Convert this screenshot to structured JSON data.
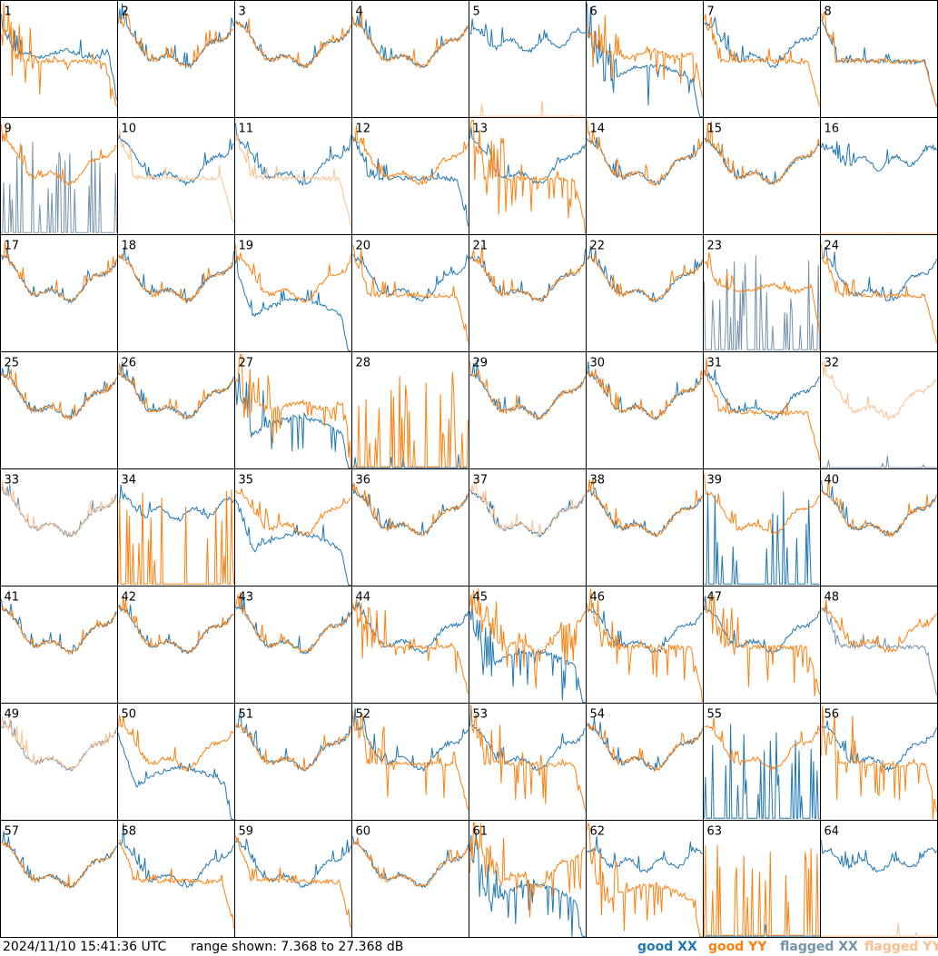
{
  "footer": {
    "timestamp": "2024/11/10 15:41:36 UTC",
    "range": "range shown: 7.368 to 27.368 dB"
  },
  "chart_data": {
    "type": "line",
    "title": "",
    "grid": {
      "rows": 8,
      "cols": 8
    },
    "ylim": [
      7.368,
      27.368
    ],
    "y_units": "dB",
    "legend": [
      {
        "name": "good XX",
        "color": "#1f77b4"
      },
      {
        "name": "good YY",
        "color": "#ff7f0e"
      },
      {
        "name": "flagged XX",
        "color": "#7393ab"
      },
      {
        "name": "flagged YY",
        "color": "#fcbf8e"
      }
    ],
    "panels": [
      {
        "label": "1",
        "xx": "good",
        "yy": "good",
        "xx_shape": "plateau",
        "yy_shape": "droop",
        "noisy": "yy"
      },
      {
        "label": "2",
        "xx": "good",
        "yy": "good",
        "xx_shape": "bowl",
        "yy_shape": "bowl"
      },
      {
        "label": "3",
        "xx": "good",
        "yy": "good",
        "xx_shape": "bowl",
        "yy_shape": "bowl"
      },
      {
        "label": "4",
        "xx": "good",
        "yy": "good",
        "xx_shape": "bowl",
        "yy_shape": "bowl"
      },
      {
        "label": "5",
        "xx": "good",
        "yy": "flagged",
        "xx_shape": "high",
        "yy_shape": "floor"
      },
      {
        "label": "6",
        "xx": "good",
        "yy": "good",
        "xx_shape": "dip",
        "yy_shape": "plateau",
        "noisy": "both"
      },
      {
        "label": "7",
        "xx": "good",
        "yy": "good",
        "xx_shape": "bowl",
        "yy_shape": "droop"
      },
      {
        "label": "8",
        "xx": "good",
        "yy": "good",
        "xx_shape": "droop",
        "yy_shape": "droop"
      },
      {
        "label": "9",
        "xx": "flagged",
        "yy": "good",
        "xx_shape": "spikes",
        "yy_shape": "bowl"
      },
      {
        "label": "10",
        "xx": "good",
        "yy": "flagged",
        "xx_shape": "bowl",
        "yy_shape": "droop"
      },
      {
        "label": "11",
        "xx": "good",
        "yy": "flagged",
        "xx_shape": "bowl",
        "yy_shape": "droop"
      },
      {
        "label": "12",
        "xx": "good",
        "yy": "good",
        "xx_shape": "droop",
        "yy_shape": "bowl"
      },
      {
        "label": "13",
        "xx": "good",
        "yy": "good",
        "xx_shape": "bowl",
        "yy_shape": "droop",
        "noisy": "yy"
      },
      {
        "label": "14",
        "xx": "good",
        "yy": "good",
        "xx_shape": "bowl",
        "yy_shape": "bowl"
      },
      {
        "label": "15",
        "xx": "good",
        "yy": "good",
        "xx_shape": "bowl",
        "yy_shape": "bowl"
      },
      {
        "label": "16",
        "xx": "good",
        "yy": "flagged",
        "xx_shape": "high",
        "yy_shape": "floor"
      },
      {
        "label": "17",
        "xx": "good",
        "yy": "good",
        "xx_shape": "bowl",
        "yy_shape": "bowl"
      },
      {
        "label": "18",
        "xx": "good",
        "yy": "good",
        "xx_shape": "bowl",
        "yy_shape": "bowl"
      },
      {
        "label": "19",
        "xx": "good",
        "yy": "good",
        "xx_shape": "dip",
        "yy_shape": "bowl"
      },
      {
        "label": "20",
        "xx": "good",
        "yy": "good",
        "xx_shape": "bowl",
        "yy_shape": "droop"
      },
      {
        "label": "21",
        "xx": "good",
        "yy": "good",
        "xx_shape": "bowl",
        "yy_shape": "bowl"
      },
      {
        "label": "22",
        "xx": "good",
        "yy": "good",
        "xx_shape": "bowl",
        "yy_shape": "bowl"
      },
      {
        "label": "23",
        "xx": "flagged",
        "yy": "good",
        "xx_shape": "spikes",
        "yy_shape": "plateau"
      },
      {
        "label": "24",
        "xx": "good",
        "yy": "good",
        "xx_shape": "bowl",
        "yy_shape": "droop"
      },
      {
        "label": "25",
        "xx": "good",
        "yy": "good",
        "xx_shape": "bowl",
        "yy_shape": "bowl"
      },
      {
        "label": "26",
        "xx": "good",
        "yy": "good",
        "xx_shape": "bowl",
        "yy_shape": "bowl"
      },
      {
        "label": "27",
        "xx": "good",
        "yy": "good",
        "xx_shape": "dip",
        "yy_shape": "plateau",
        "noisy": "both"
      },
      {
        "label": "28",
        "xx": "good",
        "yy": "good",
        "xx_shape": "floor",
        "yy_shape": "spikes"
      },
      {
        "label": "29",
        "xx": "good",
        "yy": "good",
        "xx_shape": "bowl",
        "yy_shape": "bowl"
      },
      {
        "label": "30",
        "xx": "good",
        "yy": "good",
        "xx_shape": "bowl",
        "yy_shape": "bowl"
      },
      {
        "label": "31",
        "xx": "good",
        "yy": "good",
        "xx_shape": "bowl",
        "yy_shape": "droop"
      },
      {
        "label": "32",
        "xx": "flagged",
        "yy": "flagged",
        "xx_shape": "floor",
        "yy_shape": "bowl"
      },
      {
        "label": "33",
        "xx": "flagged",
        "yy": "flagged",
        "xx_shape": "bowl",
        "yy_shape": "bowl"
      },
      {
        "label": "34",
        "xx": "good",
        "yy": "good",
        "xx_shape": "high",
        "yy_shape": "spikes"
      },
      {
        "label": "35",
        "xx": "good",
        "yy": "good",
        "xx_shape": "dip",
        "yy_shape": "bowl"
      },
      {
        "label": "36",
        "xx": "good",
        "yy": "good",
        "xx_shape": "bowl",
        "yy_shape": "bowl"
      },
      {
        "label": "37",
        "xx": "good",
        "yy": "flagged",
        "xx_shape": "bowl",
        "yy_shape": "bowl"
      },
      {
        "label": "38",
        "xx": "good",
        "yy": "good",
        "xx_shape": "bowl",
        "yy_shape": "bowl"
      },
      {
        "label": "39",
        "xx": "good",
        "yy": "good",
        "xx_shape": "spikes",
        "yy_shape": "bowl"
      },
      {
        "label": "40",
        "xx": "good",
        "yy": "good",
        "xx_shape": "bowl",
        "yy_shape": "bowl"
      },
      {
        "label": "41",
        "xx": "good",
        "yy": "good",
        "xx_shape": "bowl",
        "yy_shape": "bowl"
      },
      {
        "label": "42",
        "xx": "good",
        "yy": "good",
        "xx_shape": "bowl",
        "yy_shape": "bowl"
      },
      {
        "label": "43",
        "xx": "good",
        "yy": "good",
        "xx_shape": "bowl",
        "yy_shape": "bowl"
      },
      {
        "label": "44",
        "xx": "good",
        "yy": "good",
        "xx_shape": "bowl",
        "yy_shape": "droop",
        "noisy": "yy"
      },
      {
        "label": "45",
        "xx": "good",
        "yy": "good",
        "xx_shape": "dip",
        "yy_shape": "bowl",
        "noisy": "both"
      },
      {
        "label": "46",
        "xx": "good",
        "yy": "good",
        "xx_shape": "bowl",
        "yy_shape": "droop",
        "noisy": "yy"
      },
      {
        "label": "47",
        "xx": "good",
        "yy": "good",
        "xx_shape": "bowl",
        "yy_shape": "droop",
        "noisy": "yy"
      },
      {
        "label": "48",
        "xx": "flagged",
        "yy": "good",
        "xx_shape": "droop",
        "yy_shape": "bowl"
      },
      {
        "label": "49",
        "xx": "flagged",
        "yy": "flagged",
        "xx_shape": "bowl",
        "yy_shape": "bowl"
      },
      {
        "label": "50",
        "xx": "good",
        "yy": "good",
        "xx_shape": "dip",
        "yy_shape": "bowl"
      },
      {
        "label": "51",
        "xx": "good",
        "yy": "good",
        "xx_shape": "bowl",
        "yy_shape": "bowl"
      },
      {
        "label": "52",
        "xx": "good",
        "yy": "good",
        "xx_shape": "bowl",
        "yy_shape": "droop",
        "noisy": "yy"
      },
      {
        "label": "53",
        "xx": "good",
        "yy": "good",
        "xx_shape": "bowl",
        "yy_shape": "droop",
        "noisy": "yy"
      },
      {
        "label": "54",
        "xx": "good",
        "yy": "good",
        "xx_shape": "bowl",
        "yy_shape": "bowl"
      },
      {
        "label": "55",
        "xx": "good",
        "yy": "good",
        "xx_shape": "spikes",
        "yy_shape": "bowl"
      },
      {
        "label": "56",
        "xx": "good",
        "yy": "good",
        "xx_shape": "bowl",
        "yy_shape": "droop",
        "noisy": "yy"
      },
      {
        "label": "57",
        "xx": "good",
        "yy": "good",
        "xx_shape": "bowl",
        "yy_shape": "bowl"
      },
      {
        "label": "58",
        "xx": "good",
        "yy": "good",
        "xx_shape": "bowl",
        "yy_shape": "droop"
      },
      {
        "label": "59",
        "xx": "good",
        "yy": "good",
        "xx_shape": "bowl",
        "yy_shape": "droop"
      },
      {
        "label": "60",
        "xx": "good",
        "yy": "good",
        "xx_shape": "bowl",
        "yy_shape": "bowl"
      },
      {
        "label": "61",
        "xx": "good",
        "yy": "good",
        "xx_shape": "dip",
        "yy_shape": "bowl",
        "noisy": "both"
      },
      {
        "label": "62",
        "xx": "good",
        "yy": "good",
        "xx_shape": "high",
        "yy_shape": "dip",
        "noisy": "yy"
      },
      {
        "label": "63",
        "xx": "good",
        "yy": "good",
        "xx_shape": "floor",
        "yy_shape": "spikes"
      },
      {
        "label": "64",
        "xx": "good",
        "yy": "flagged",
        "xx_shape": "high",
        "yy_shape": "floor"
      }
    ]
  }
}
